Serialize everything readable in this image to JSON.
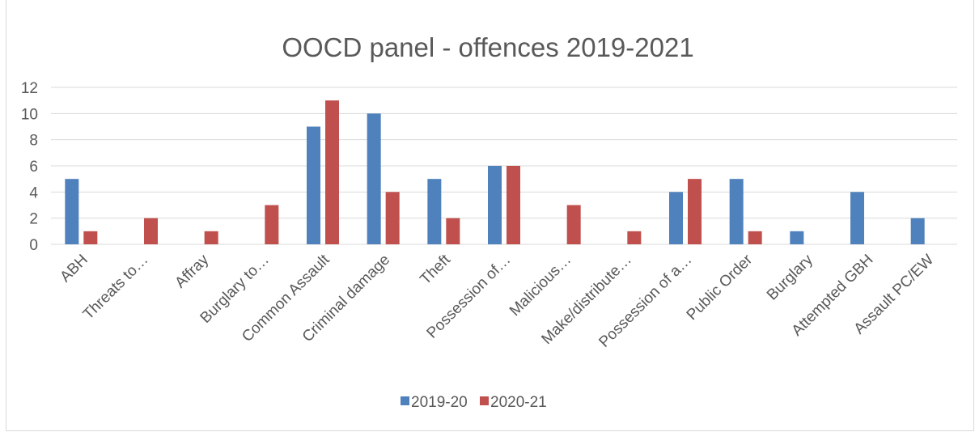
{
  "chart_data": {
    "type": "bar",
    "title": "OOCD panel - offences 2019-2021",
    "xlabel": "",
    "ylabel": "",
    "ylim": [
      0,
      12
    ],
    "yticks": [
      0,
      2,
      4,
      6,
      8,
      10,
      12
    ],
    "grid": true,
    "legend_position": "bottom",
    "categories": [
      "ABH",
      "Threats to…",
      "Affray",
      "Burglary to…",
      "Common Assault",
      "Criminal damage",
      "Theft",
      "Possession of…",
      "Malicious…",
      "Make/distribute…",
      "Possession of a…",
      "Public Order",
      "Burglary",
      "Attempted GBH",
      "Assault PC/EW"
    ],
    "series": [
      {
        "name": "2019-20",
        "color": "#4f81bd",
        "values": [
          5,
          0,
          0,
          0,
          9,
          10,
          5,
          6,
          0,
          0,
          4,
          5,
          1,
          4,
          2
        ]
      },
      {
        "name": "2020-21",
        "color": "#c0504d",
        "values": [
          1,
          2,
          1,
          3,
          11,
          4,
          2,
          6,
          3,
          1,
          5,
          1,
          0,
          0,
          0
        ]
      }
    ]
  }
}
